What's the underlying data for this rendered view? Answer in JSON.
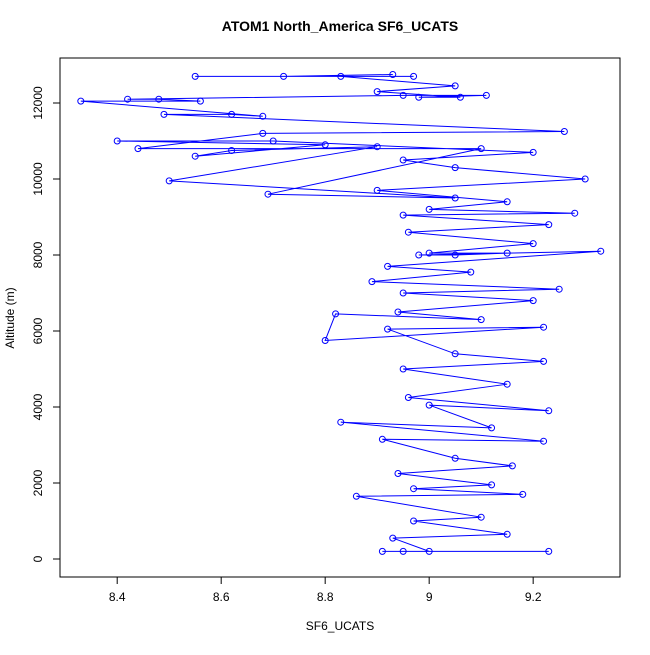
{
  "chart_data": {
    "type": "line",
    "title": "ATOM1 North_America SF6_UCATS",
    "x_label": "SF6_UCATS",
    "y_label": "Altitude (m)",
    "color": "#0000ff",
    "xlim": [
      8.29,
      9.367
    ],
    "ylim": [
      -474,
      13184
    ],
    "xticks": [
      8.4,
      8.6,
      8.8,
      9.0,
      9.2
    ],
    "yticks": [
      0,
      2000,
      4000,
      6000,
      8000,
      10000,
      12000
    ],
    "x": [
      9.23,
      8.91,
      8.95,
      9.0,
      8.93,
      9.15,
      8.97,
      9.1,
      8.86,
      9.18,
      8.97,
      9.12,
      8.94,
      9.16,
      9.05,
      8.91,
      9.22,
      8.83,
      9.12,
      9.0,
      9.23,
      8.96,
      9.15,
      8.95,
      9.22,
      9.05,
      8.92,
      9.22,
      8.8,
      8.82,
      9.1,
      8.94,
      9.2,
      8.95,
      9.25,
      8.89,
      9.08,
      8.92,
      9.33,
      8.98,
      9.05,
      9.15,
      9.0,
      9.2,
      8.96,
      9.23,
      8.95,
      9.28,
      9.0,
      9.15,
      8.9,
      9.3,
      9.05,
      8.95,
      9.2,
      8.7,
      8.4,
      8.8,
      8.55,
      8.62,
      8.9,
      8.5,
      9.05,
      8.69,
      9.1,
      8.44,
      8.68,
      9.26,
      8.49,
      8.62,
      8.68,
      8.33,
      8.56,
      8.48,
      8.42,
      8.95,
      9.11,
      8.98,
      9.06,
      8.9,
      9.05,
      8.83,
      8.97,
      8.55,
      8.72,
      8.93
    ],
    "values": [
      200,
      200,
      200,
      200,
      550,
      650,
      1000,
      1100,
      1650,
      1700,
      1850,
      1950,
      2250,
      2450,
      2650,
      3150,
      3100,
      3600,
      3450,
      4050,
      3900,
      4250,
      4600,
      5000,
      5200,
      5400,
      6050,
      6100,
      5750,
      6450,
      6300,
      6500,
      6800,
      7000,
      7100,
      7300,
      7550,
      7700,
      8100,
      8000,
      8000,
      8050,
      8050,
      8300,
      8600,
      8800,
      9050,
      9100,
      9200,
      9400,
      9700,
      10000,
      10300,
      10500,
      10700,
      11000,
      11000,
      10900,
      10600,
      10750,
      10850,
      9950,
      9500,
      9600,
      10800,
      10800,
      11200,
      11250,
      11700,
      11700,
      11650,
      12050,
      12050,
      12100,
      12100,
      12200,
      12200,
      12150,
      12150,
      12300,
      12450,
      12700,
      12700,
      12700,
      12700,
      12750
    ]
  }
}
